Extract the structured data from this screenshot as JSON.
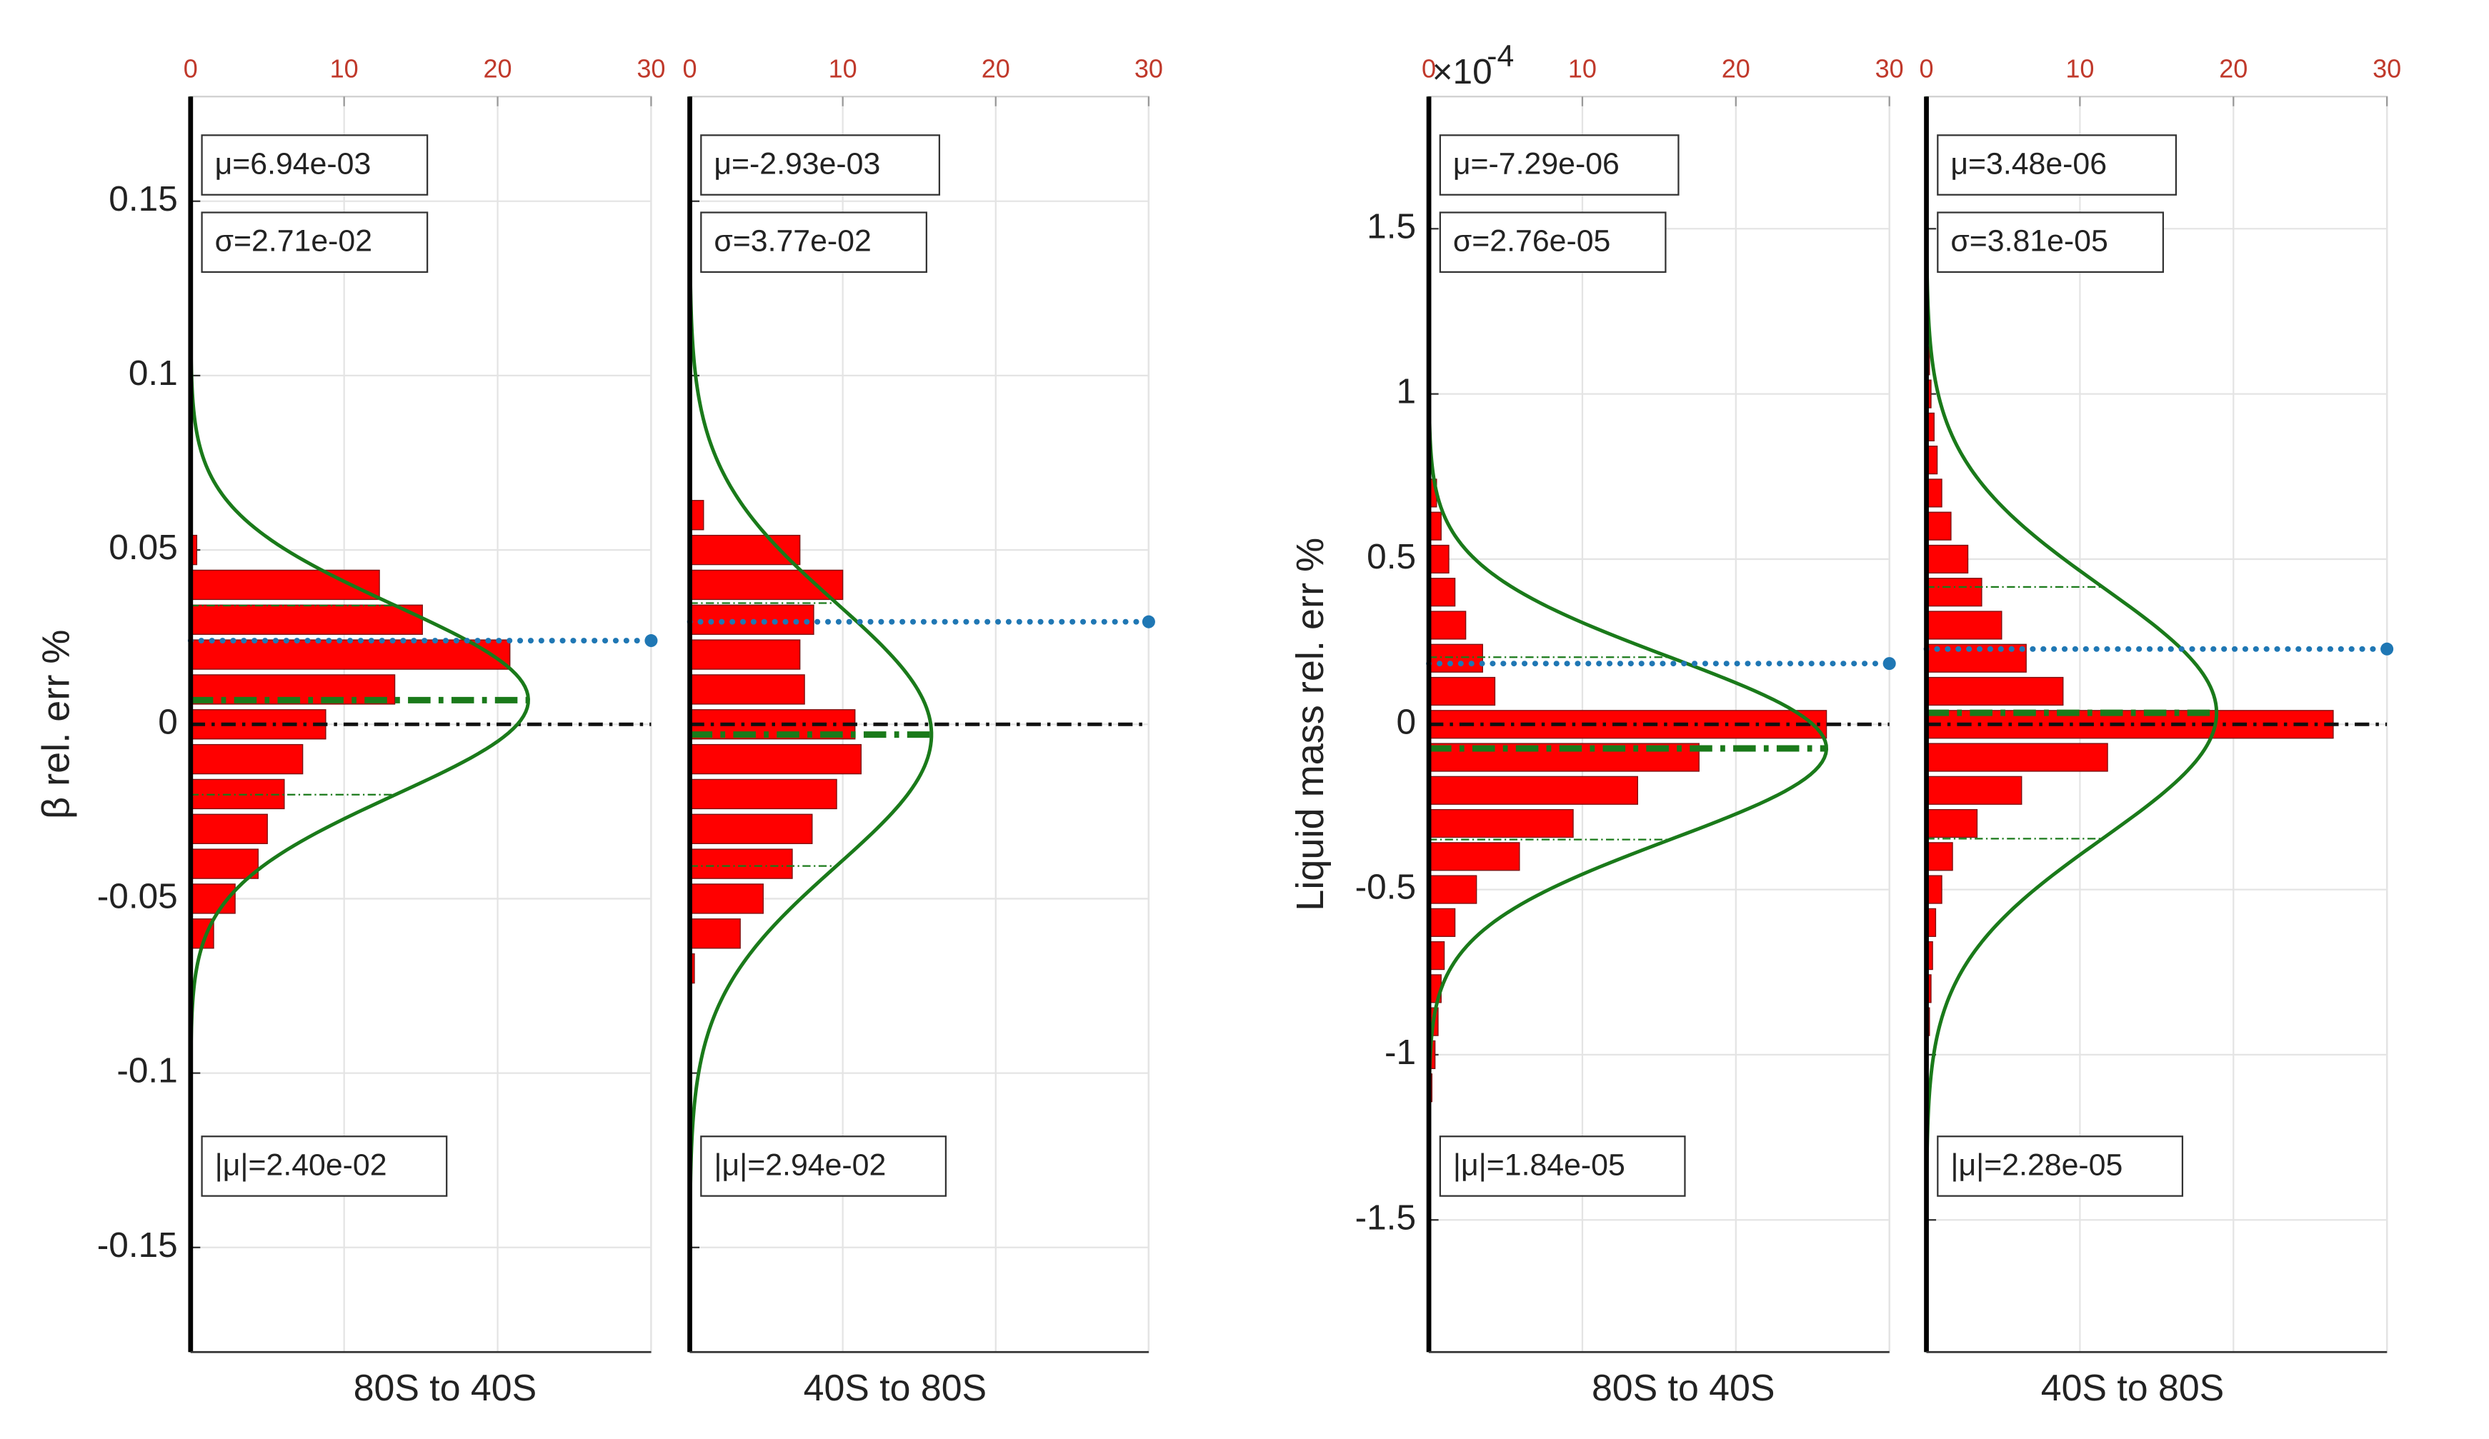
{
  "chart_data": [
    {
      "type": "histogram",
      "orientation": "horizontal",
      "y_label": "β rel. err %",
      "x_label": "80S to 40S",
      "bins": [
        -0.065,
        -0.055,
        -0.045,
        -0.035,
        -0.025,
        -0.015,
        -0.005,
        0.005,
        0.015,
        0.025,
        0.035,
        0.045,
        0.055
      ],
      "counts": [
        1.5,
        2.9,
        4.4,
        5.0,
        6.1,
        7.3,
        8.8,
        13.3,
        20.8,
        15.1,
        12.3,
        0.4
      ],
      "bar_color": "#ff0000",
      "fit": {
        "mean": 0.00694,
        "std": 0.0271,
        "peak": 22,
        "color": "#1a7a1a"
      },
      "abs_mean": 0.024,
      "abs_mean_color": "#1f77b4",
      "mean_text": "μ=6.94e-03",
      "std_text": "σ=2.71e-02",
      "abs_mean_text": "|μ|=2.40e-02",
      "xlim": [
        0,
        30
      ],
      "xticks": [
        0,
        10,
        20,
        30
      ],
      "ylim": [
        -0.18,
        0.18
      ],
      "yticks": [
        -0.15,
        -0.1,
        -0.05,
        0,
        0.05,
        0.1,
        0.15
      ],
      "grid": true
    },
    {
      "type": "histogram",
      "orientation": "horizontal",
      "x_label": "40S to 80S",
      "bins": [
        -0.075,
        -0.065,
        -0.055,
        -0.045,
        -0.035,
        -0.025,
        -0.015,
        -0.005,
        0.005,
        0.015,
        0.025,
        0.035,
        0.045,
        0.055,
        0.065
      ],
      "counts": [
        0.3,
        3.3,
        4.8,
        6.7,
        8.0,
        9.6,
        11.2,
        10.8,
        7.5,
        7.2,
        8.1,
        10,
        7.2,
        0.9
      ],
      "bar_color": "#ff0000",
      "fit": {
        "mean": -0.00293,
        "std": 0.0377,
        "peak": 15.8,
        "color": "#1a7a1a"
      },
      "abs_mean": 0.0294,
      "abs_mean_color": "#1f77b4",
      "mean_text": "μ=-2.93e-03",
      "std_text": "σ=3.77e-02",
      "abs_mean_text": "|μ|=2.94e-02",
      "xlim": [
        0,
        30
      ],
      "xticks": [
        0,
        10,
        20,
        30
      ],
      "ylim": [
        -0.18,
        0.18
      ],
      "yticks": [
        -0.15,
        -0.1,
        -0.05,
        0,
        0.05,
        0.1,
        0.15
      ],
      "grid": true
    },
    {
      "type": "histogram",
      "orientation": "horizontal",
      "y_label": "Liquid mass rel. err %",
      "x_label": "80S to 40S",
      "y_multiplier": {
        "base": "×10",
        "exponent": "-4"
      },
      "bins": [
        -1.15,
        -1.05,
        -0.95,
        -0.85,
        -0.75,
        -0.65,
        -0.55,
        -0.45,
        -0.35,
        -0.25,
        -0.15,
        -0.05,
        0.05,
        0.15,
        0.25,
        0.35,
        0.45,
        0.55,
        0.65,
        0.75
      ],
      "counts": [
        0.2,
        0.4,
        0.6,
        0.8,
        1.0,
        1.7,
        3.1,
        5.9,
        9.4,
        13.6,
        17.6,
        25.9,
        4.3,
        3.5,
        2.4,
        1.7,
        1.3,
        0.8,
        0.5
      ],
      "bar_color": "#ff0000",
      "fit": {
        "mean": -0.0729,
        "std": 0.276,
        "peak": 25.9,
        "color": "#1a7a1a"
      },
      "abs_mean": 0.184,
      "abs_mean_color": "#1f77b4",
      "mean_text": "μ=-7.29e-06",
      "std_text": "σ=2.76e-05",
      "abs_mean_text": "|μ|=1.84e-05",
      "xlim": [
        0,
        30
      ],
      "xticks": [
        0,
        10,
        20,
        30
      ],
      "ylim": [
        -1.9,
        1.9
      ],
      "yticks": [
        -1.5,
        -1,
        -0.5,
        0,
        0.5,
        1,
        1.5
      ],
      "grid": true
    },
    {
      "type": "histogram",
      "orientation": "horizontal",
      "x_label": "40S to 80S",
      "bins": [
        -0.95,
        -0.85,
        -0.75,
        -0.65,
        -0.55,
        -0.45,
        -0.35,
        -0.25,
        -0.15,
        -0.05,
        0.05,
        0.15,
        0.25,
        0.35,
        0.45,
        0.55,
        0.65,
        0.75,
        0.85,
        0.95,
        1.05,
        1.15
      ],
      "counts": [
        0.2,
        0.3,
        0.4,
        0.6,
        1.0,
        1.7,
        3.3,
        6.2,
        11.8,
        26.5,
        8.9,
        6.5,
        4.9,
        3.6,
        2.7,
        1.6,
        1.0,
        0.7,
        0.5,
        0.3,
        0.2
      ],
      "bar_color": "#ff0000",
      "fit": {
        "mean": 0.0348,
        "std": 0.381,
        "peak": 18.9,
        "color": "#1a7a1a"
      },
      "abs_mean": 0.228,
      "abs_mean_color": "#1f77b4",
      "mean_text": "μ=3.48e-06",
      "std_text": "σ=3.81e-05",
      "abs_mean_text": "|μ|=2.28e-05",
      "xlim": [
        0,
        30
      ],
      "xticks": [
        0,
        10,
        20,
        30
      ],
      "ylim": [
        -1.9,
        1.9
      ],
      "yticks": [
        -1.5,
        -1,
        -0.5,
        0,
        0.5,
        1,
        1.5
      ],
      "grid": true
    }
  ]
}
